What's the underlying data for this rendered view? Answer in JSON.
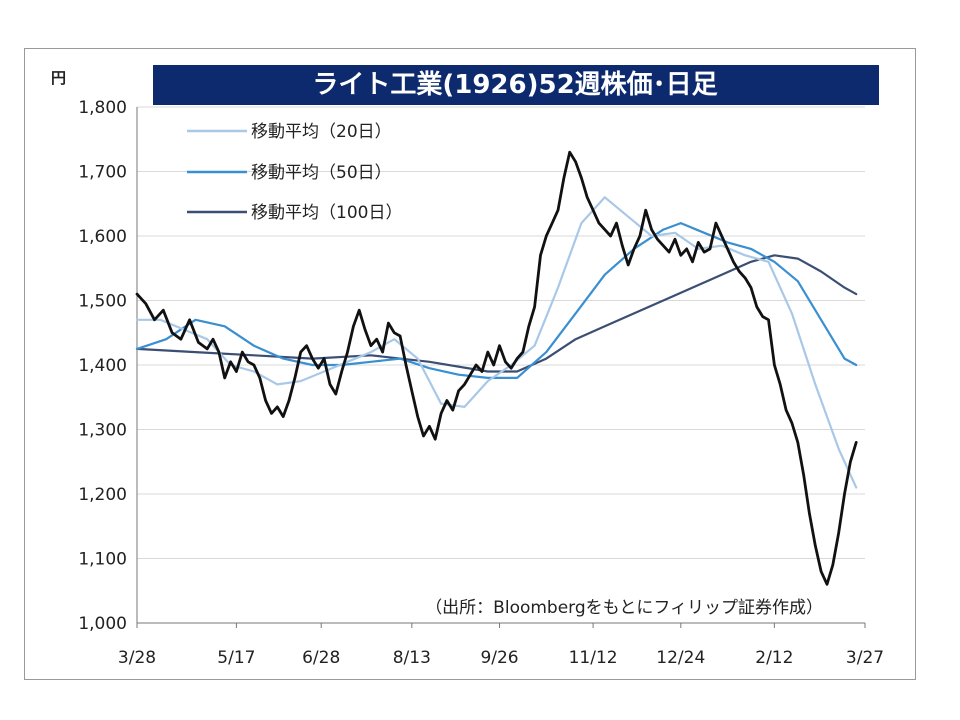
{
  "chart_data": {
    "type": "line",
    "title": "ライト工業(1926)52週株価･日足",
    "y_unit_label": "円",
    "ylim": [
      1000,
      1800
    ],
    "y_ticks": [
      1000,
      1100,
      1200,
      1300,
      1400,
      1500,
      1600,
      1700,
      1800
    ],
    "y_tick_labels": [
      "1,000",
      "1,100",
      "1,200",
      "1,300",
      "1,400",
      "1,500",
      "1,600",
      "1,700",
      "1,800"
    ],
    "x_tick_labels": [
      "3/28",
      "5/17",
      "6/28",
      "8/13",
      "9/26",
      "11/12",
      "12/24",
      "2/12",
      "3/27"
    ],
    "x_tick_positions": [
      0,
      34,
      63,
      94,
      124,
      156,
      186,
      218,
      249
    ],
    "xlim": [
      0,
      249
    ],
    "grid": true,
    "legend_position": "top-left",
    "source_note": "（出所：Bloombergをもとにフィリップ証券作成）",
    "colors": {
      "title_bg": "#0d2a6e",
      "title_text": "#ffffff",
      "price": "#111111",
      "ma20": "#a9c8e8",
      "ma50": "#3a8fd0",
      "ma100": "#3b4e74",
      "grid": "#d9d9d9",
      "axis_text": "#222222"
    },
    "series": [
      {
        "name": "株価",
        "key": "price",
        "style": "price",
        "points": [
          [
            0,
            1510
          ],
          [
            3,
            1495
          ],
          [
            6,
            1470
          ],
          [
            9,
            1485
          ],
          [
            12,
            1450
          ],
          [
            15,
            1440
          ],
          [
            18,
            1470
          ],
          [
            21,
            1435
          ],
          [
            24,
            1425
          ],
          [
            26,
            1440
          ],
          [
            28,
            1420
          ],
          [
            30,
            1380
          ],
          [
            32,
            1405
          ],
          [
            34,
            1390
          ],
          [
            36,
            1420
          ],
          [
            38,
            1405
          ],
          [
            40,
            1400
          ],
          [
            42,
            1380
          ],
          [
            44,
            1345
          ],
          [
            46,
            1325
          ],
          [
            48,
            1335
          ],
          [
            50,
            1320
          ],
          [
            52,
            1345
          ],
          [
            54,
            1380
          ],
          [
            56,
            1420
          ],
          [
            58,
            1430
          ],
          [
            60,
            1410
          ],
          [
            62,
            1395
          ],
          [
            64,
            1410
          ],
          [
            66,
            1370
          ],
          [
            68,
            1355
          ],
          [
            70,
            1390
          ],
          [
            72,
            1420
          ],
          [
            74,
            1460
          ],
          [
            76,
            1485
          ],
          [
            78,
            1455
          ],
          [
            80,
            1430
          ],
          [
            82,
            1440
          ],
          [
            84,
            1420
          ],
          [
            86,
            1465
          ],
          [
            88,
            1450
          ],
          [
            90,
            1445
          ],
          [
            92,
            1400
          ],
          [
            94,
            1360
          ],
          [
            96,
            1320
          ],
          [
            98,
            1290
          ],
          [
            100,
            1305
          ],
          [
            102,
            1285
          ],
          [
            104,
            1325
          ],
          [
            106,
            1345
          ],
          [
            108,
            1330
          ],
          [
            110,
            1360
          ],
          [
            112,
            1370
          ],
          [
            114,
            1385
          ],
          [
            116,
            1400
          ],
          [
            118,
            1390
          ],
          [
            120,
            1420
          ],
          [
            122,
            1400
          ],
          [
            124,
            1430
          ],
          [
            126,
            1405
          ],
          [
            128,
            1395
          ],
          [
            130,
            1410
          ],
          [
            132,
            1420
          ],
          [
            134,
            1460
          ],
          [
            136,
            1490
          ],
          [
            138,
            1570
          ],
          [
            140,
            1600
          ],
          [
            142,
            1620
          ],
          [
            144,
            1640
          ],
          [
            146,
            1690
          ],
          [
            148,
            1730
          ],
          [
            150,
            1715
          ],
          [
            152,
            1690
          ],
          [
            154,
            1660
          ],
          [
            156,
            1640
          ],
          [
            158,
            1620
          ],
          [
            160,
            1610
          ],
          [
            162,
            1600
          ],
          [
            164,
            1620
          ],
          [
            166,
            1585
          ],
          [
            168,
            1555
          ],
          [
            170,
            1580
          ],
          [
            172,
            1600
          ],
          [
            174,
            1640
          ],
          [
            176,
            1610
          ],
          [
            178,
            1595
          ],
          [
            180,
            1585
          ],
          [
            182,
            1575
          ],
          [
            184,
            1595
          ],
          [
            186,
            1570
          ],
          [
            188,
            1580
          ],
          [
            190,
            1560
          ],
          [
            192,
            1590
          ],
          [
            194,
            1575
          ],
          [
            196,
            1580
          ],
          [
            198,
            1620
          ],
          [
            200,
            1600
          ],
          [
            202,
            1580
          ],
          [
            204,
            1560
          ],
          [
            206,
            1545
          ],
          [
            208,
            1535
          ],
          [
            210,
            1520
          ],
          [
            212,
            1490
          ],
          [
            214,
            1475
          ],
          [
            216,
            1470
          ],
          [
            218,
            1400
          ],
          [
            220,
            1370
          ],
          [
            222,
            1330
          ],
          [
            224,
            1310
          ],
          [
            226,
            1280
          ],
          [
            228,
            1230
          ],
          [
            230,
            1170
          ],
          [
            232,
            1120
          ],
          [
            234,
            1080
          ],
          [
            236,
            1060
          ],
          [
            238,
            1090
          ],
          [
            240,
            1140
          ],
          [
            242,
            1200
          ],
          [
            244,
            1250
          ],
          [
            246,
            1280
          ]
        ]
      },
      {
        "name": "移動平均（20日）",
        "key": "ma20",
        "style": "ma20",
        "points": [
          [
            0,
            1470
          ],
          [
            8,
            1470
          ],
          [
            16,
            1455
          ],
          [
            24,
            1440
          ],
          [
            32,
            1400
          ],
          [
            40,
            1390
          ],
          [
            48,
            1370
          ],
          [
            56,
            1375
          ],
          [
            64,
            1390
          ],
          [
            72,
            1405
          ],
          [
            80,
            1420
          ],
          [
            88,
            1440
          ],
          [
            96,
            1410
          ],
          [
            104,
            1340
          ],
          [
            112,
            1335
          ],
          [
            120,
            1375
          ],
          [
            128,
            1400
          ],
          [
            136,
            1430
          ],
          [
            144,
            1520
          ],
          [
            152,
            1620
          ],
          [
            160,
            1660
          ],
          [
            168,
            1630
          ],
          [
            176,
            1600
          ],
          [
            184,
            1605
          ],
          [
            192,
            1580
          ],
          [
            200,
            1585
          ],
          [
            208,
            1570
          ],
          [
            216,
            1560
          ],
          [
            224,
            1480
          ],
          [
            232,
            1370
          ],
          [
            240,
            1270
          ],
          [
            246,
            1210
          ]
        ]
      },
      {
        "name": "移動平均（50日）",
        "key": "ma50",
        "style": "ma50",
        "points": [
          [
            0,
            1425
          ],
          [
            10,
            1440
          ],
          [
            20,
            1470
          ],
          [
            30,
            1460
          ],
          [
            40,
            1430
          ],
          [
            50,
            1410
          ],
          [
            60,
            1400
          ],
          [
            70,
            1400
          ],
          [
            80,
            1405
          ],
          [
            90,
            1410
          ],
          [
            100,
            1395
          ],
          [
            110,
            1385
          ],
          [
            120,
            1380
          ],
          [
            130,
            1380
          ],
          [
            140,
            1420
          ],
          [
            150,
            1480
          ],
          [
            160,
            1540
          ],
          [
            170,
            1580
          ],
          [
            180,
            1610
          ],
          [
            186,
            1620
          ],
          [
            194,
            1605
          ],
          [
            202,
            1590
          ],
          [
            210,
            1580
          ],
          [
            218,
            1560
          ],
          [
            226,
            1530
          ],
          [
            234,
            1470
          ],
          [
            242,
            1410
          ],
          [
            246,
            1400
          ]
        ]
      },
      {
        "name": "移動平均（100日）",
        "key": "ma100",
        "style": "ma100",
        "points": [
          [
            0,
            1425
          ],
          [
            20,
            1420
          ],
          [
            40,
            1415
          ],
          [
            60,
            1410
          ],
          [
            80,
            1415
          ],
          [
            100,
            1405
          ],
          [
            120,
            1390
          ],
          [
            130,
            1390
          ],
          [
            140,
            1410
          ],
          [
            150,
            1440
          ],
          [
            160,
            1460
          ],
          [
            170,
            1480
          ],
          [
            180,
            1500
          ],
          [
            190,
            1520
          ],
          [
            200,
            1540
          ],
          [
            210,
            1560
          ],
          [
            218,
            1570
          ],
          [
            226,
            1565
          ],
          [
            234,
            1545
          ],
          [
            242,
            1520
          ],
          [
            246,
            1510
          ]
        ]
      }
    ],
    "legend": [
      {
        "label": "移動平均（20日）",
        "key": "ma20"
      },
      {
        "label": "移動平均（50日）",
        "key": "ma50"
      },
      {
        "label": "移動平均（100日）",
        "key": "ma100"
      }
    ]
  }
}
